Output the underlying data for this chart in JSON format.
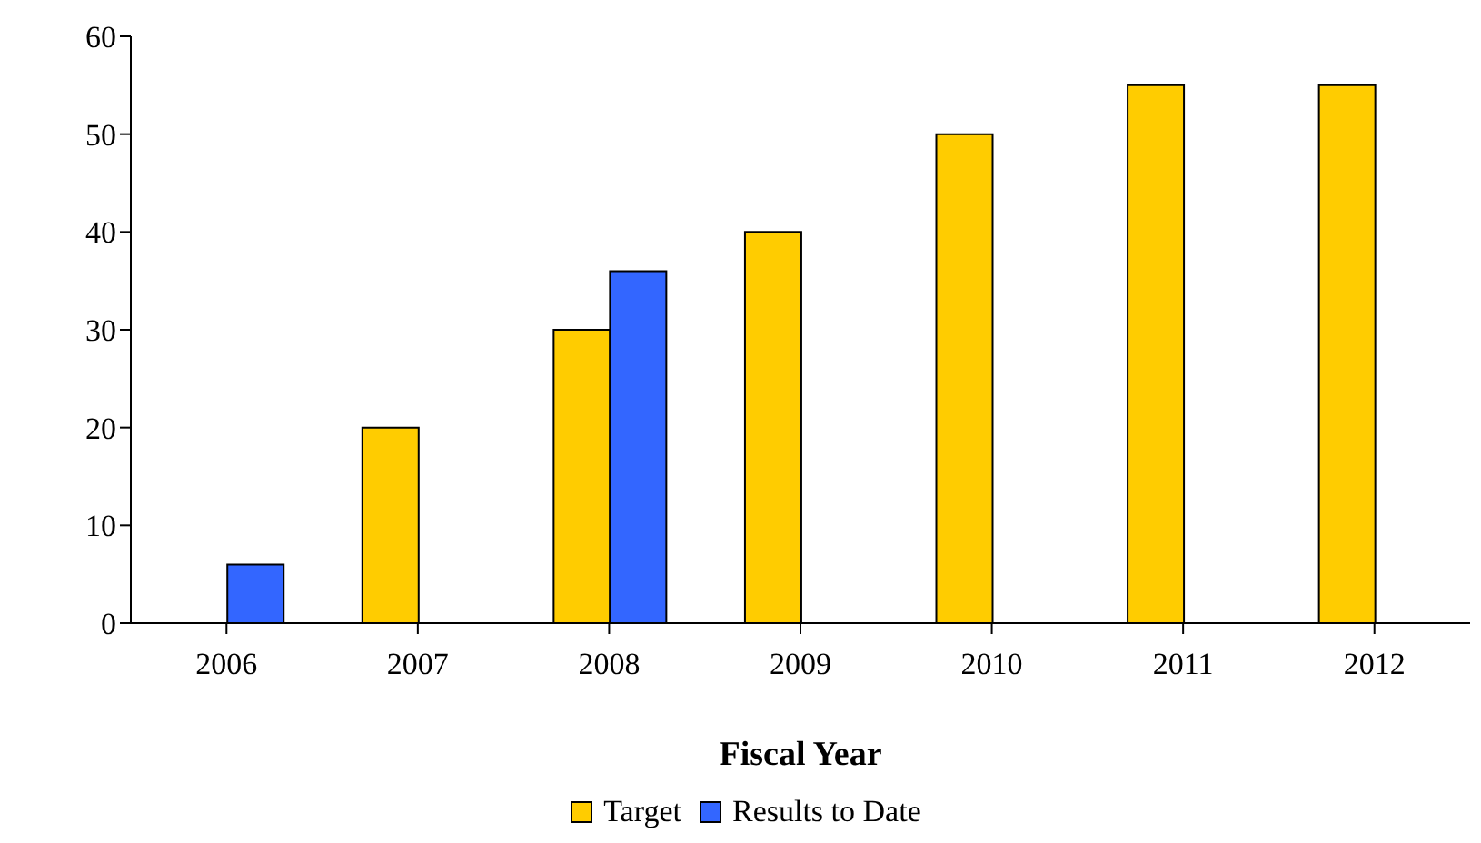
{
  "chart_data": {
    "type": "bar",
    "xlabel": "Fiscal Year",
    "categories": [
      "2006",
      "2007",
      "2008",
      "2009",
      "2010",
      "2011",
      "2012"
    ],
    "series": [
      {
        "name": "Target",
        "color": "#ffcc00",
        "values": [
          null,
          20,
          30,
          40,
          50,
          55,
          55
        ]
      },
      {
        "name": "Results to Date",
        "color": "#3366ff",
        "values": [
          6,
          null,
          36,
          null,
          null,
          null,
          null
        ]
      }
    ],
    "ylim": [
      0,
      60
    ],
    "yticks": [
      0,
      10,
      20,
      30,
      40,
      50,
      60
    ],
    "grid": false,
    "legend": "bottom"
  }
}
